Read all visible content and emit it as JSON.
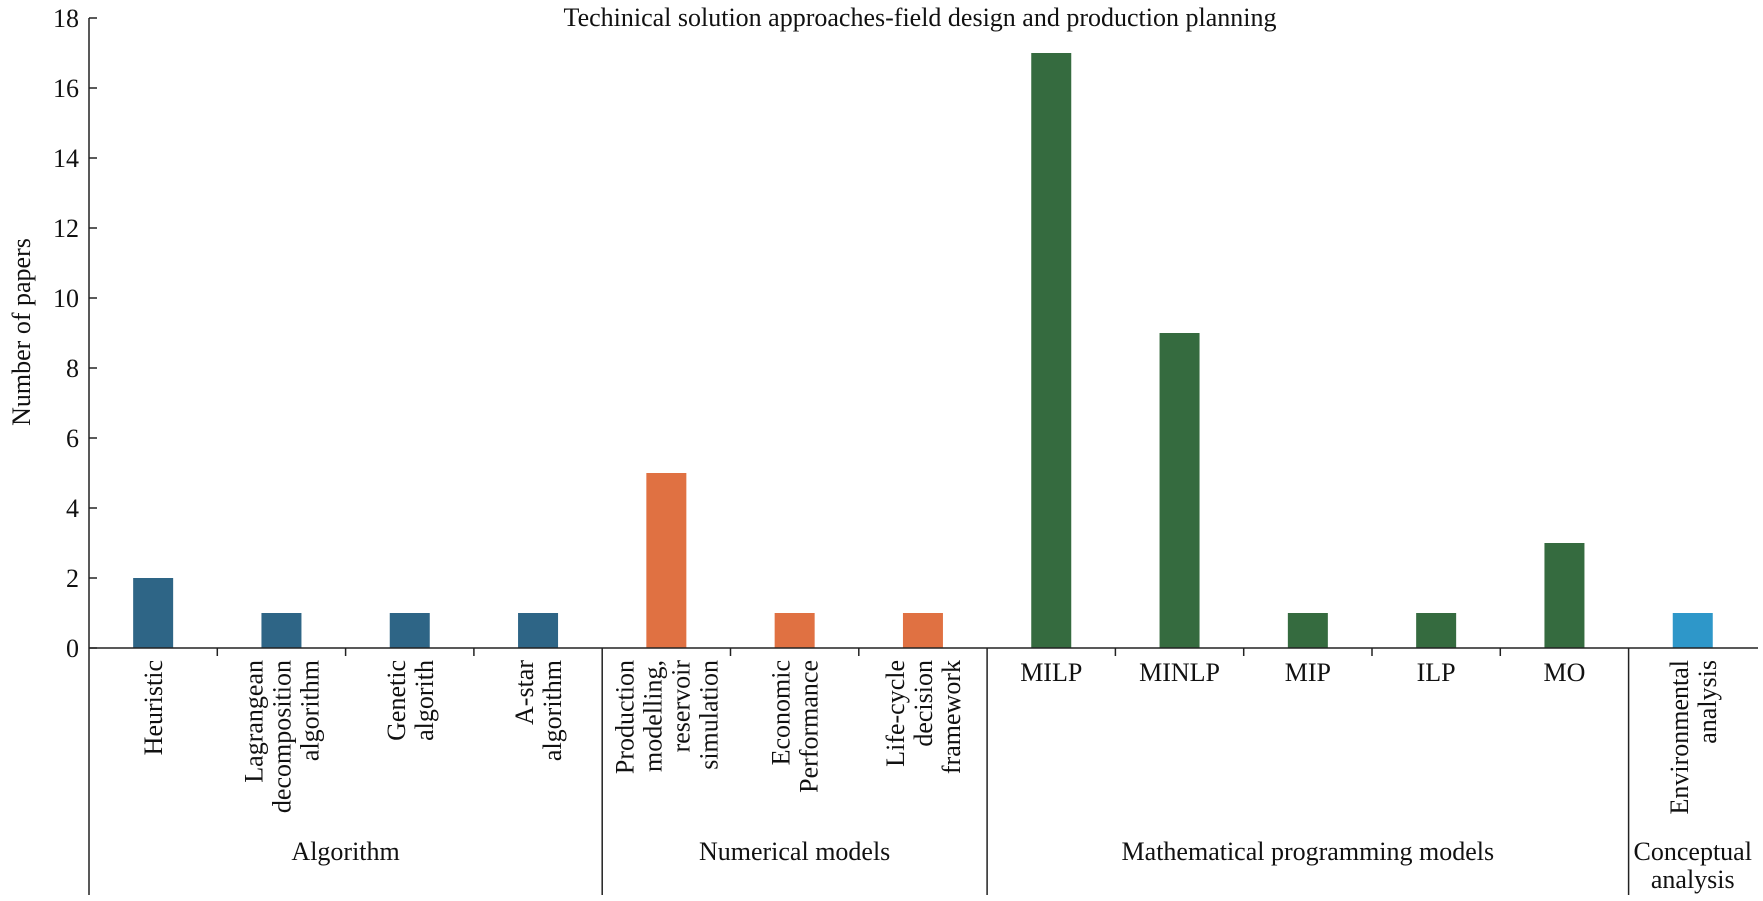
{
  "chart_data": {
    "type": "bar",
    "title": "Techinical solution approaches-field design and production planning",
    "ylabel": "Number of papers",
    "xlabel": "",
    "ylim": [
      0,
      18
    ],
    "yticks": [
      0,
      2,
      4,
      6,
      8,
      10,
      12,
      14,
      16,
      18
    ],
    "grid": false,
    "legend": "none",
    "colors": {
      "Algorithm": "#2e6586",
      "Numerical models": "#e07142",
      "Mathematical programming models": "#356b3f",
      "Conceptual analysis": "#2e97c9"
    },
    "groups": [
      {
        "name": "Algorithm",
        "label_lines": [
          "Algorithm"
        ],
        "categories": [
          {
            "label": "Heuristic",
            "label_lines": [
              "Heuristic"
            ],
            "value": 2
          },
          {
            "label": "Lagrangean decomposition algorithm",
            "label_lines": [
              "Lagrangean",
              "decomposition",
              "algorithm"
            ],
            "value": 1
          },
          {
            "label": "Genetic algorith",
            "label_lines": [
              "Genetic",
              "algorith"
            ],
            "value": 1
          },
          {
            "label": "A-star algorithm",
            "label_lines": [
              "A-star",
              "algorithm"
            ],
            "value": 1
          }
        ]
      },
      {
        "name": "Numerical models",
        "label_lines": [
          "Numerical models"
        ],
        "categories": [
          {
            "label": "Production modelling, reservoir simulation",
            "label_lines": [
              "Production",
              "modelling,",
              "reservoir",
              "simulation"
            ],
            "value": 5
          },
          {
            "label": "Economic Performance",
            "label_lines": [
              "Economic",
              "Performance"
            ],
            "value": 1
          },
          {
            "label": "Life-cycle decision framework",
            "label_lines": [
              "Life-cycle",
              "decision",
              "framework"
            ],
            "value": 1
          }
        ]
      },
      {
        "name": "Mathematical programming models",
        "label_lines": [
          "Mathematical programming models"
        ],
        "categories": [
          {
            "label": "MILP",
            "label_lines": [
              "MILP"
            ],
            "value": 17
          },
          {
            "label": "MINLP",
            "label_lines": [
              "MINLP"
            ],
            "value": 9
          },
          {
            "label": "MIP",
            "label_lines": [
              "MIP"
            ],
            "value": 1
          },
          {
            "label": "ILP",
            "label_lines": [
              "ILP"
            ],
            "value": 1
          },
          {
            "label": "MO",
            "label_lines": [
              "MO"
            ],
            "value": 3
          }
        ]
      },
      {
        "name": "Conceptual analysis",
        "label_lines": [
          "Conceptual",
          "analysis"
        ],
        "categories": [
          {
            "label": "Environmental analysis",
            "label_lines": [
              "Environmental",
              "analysis"
            ],
            "value": 1
          }
        ]
      }
    ]
  }
}
